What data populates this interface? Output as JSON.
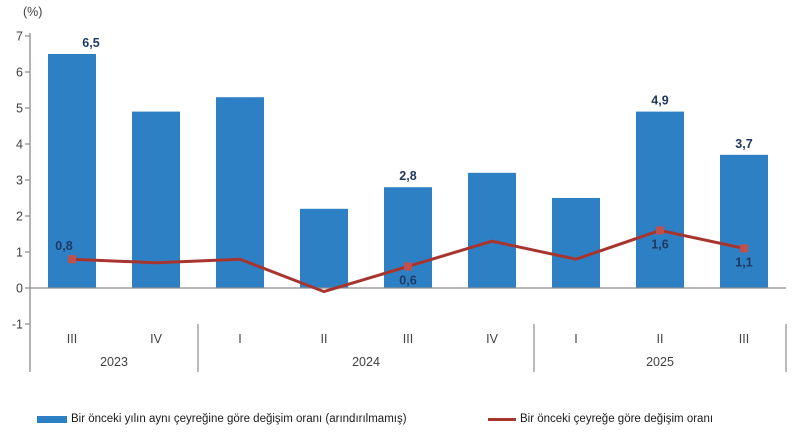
{
  "chart_data": {
    "type": "bar+line",
    "title": "",
    "ylabel": "(%)",
    "xlabel": "",
    "ylim": [
      -1,
      7
    ],
    "yticks": [
      7,
      6,
      5,
      4,
      3,
      2,
      1,
      0,
      -1
    ],
    "grid": false,
    "legend_position": "bottom",
    "categories": [
      "III",
      "IV",
      "I",
      "II",
      "III",
      "IV",
      "I",
      "II",
      "III"
    ],
    "year_groups": [
      {
        "label": "2023",
        "from": 0,
        "to": 1
      },
      {
        "label": "2024",
        "from": 2,
        "to": 5
      },
      {
        "label": "2025",
        "from": 6,
        "to": 8
      }
    ],
    "series": [
      {
        "name": "Bir önceki yılın aynı çeyreğine göre değişim oranı (arındırılmamış)",
        "type": "bar",
        "color": "#2E80C4",
        "values": [
          6.5,
          4.9,
          5.3,
          2.2,
          2.8,
          3.2,
          2.5,
          4.9,
          3.7
        ],
        "labels": [
          {
            "index": 0,
            "text": "6,5"
          },
          {
            "index": 4,
            "text": "2,8"
          },
          {
            "index": 7,
            "text": "4,9"
          },
          {
            "index": 8,
            "text": "3,7"
          }
        ]
      },
      {
        "name": "Bir önceki çeyreğe göre değişim oranı",
        "type": "line",
        "color": "#A8342E",
        "marker_color": "#C0504D",
        "values": [
          0.8,
          0.7,
          0.8,
          -0.1,
          0.6,
          1.3,
          0.8,
          1.6,
          1.1
        ],
        "labels": [
          {
            "index": 0,
            "text": "0,8",
            "position": "above"
          },
          {
            "index": 4,
            "text": "0,6",
            "position": "below"
          },
          {
            "index": 7,
            "text": "1,6",
            "position": "below"
          },
          {
            "index": 8,
            "text": "1,1",
            "position": "below"
          }
        ]
      }
    ],
    "label_color": "#1F3864",
    "axis_color": "#8C8C8C",
    "tick_text_color": "#404040"
  }
}
